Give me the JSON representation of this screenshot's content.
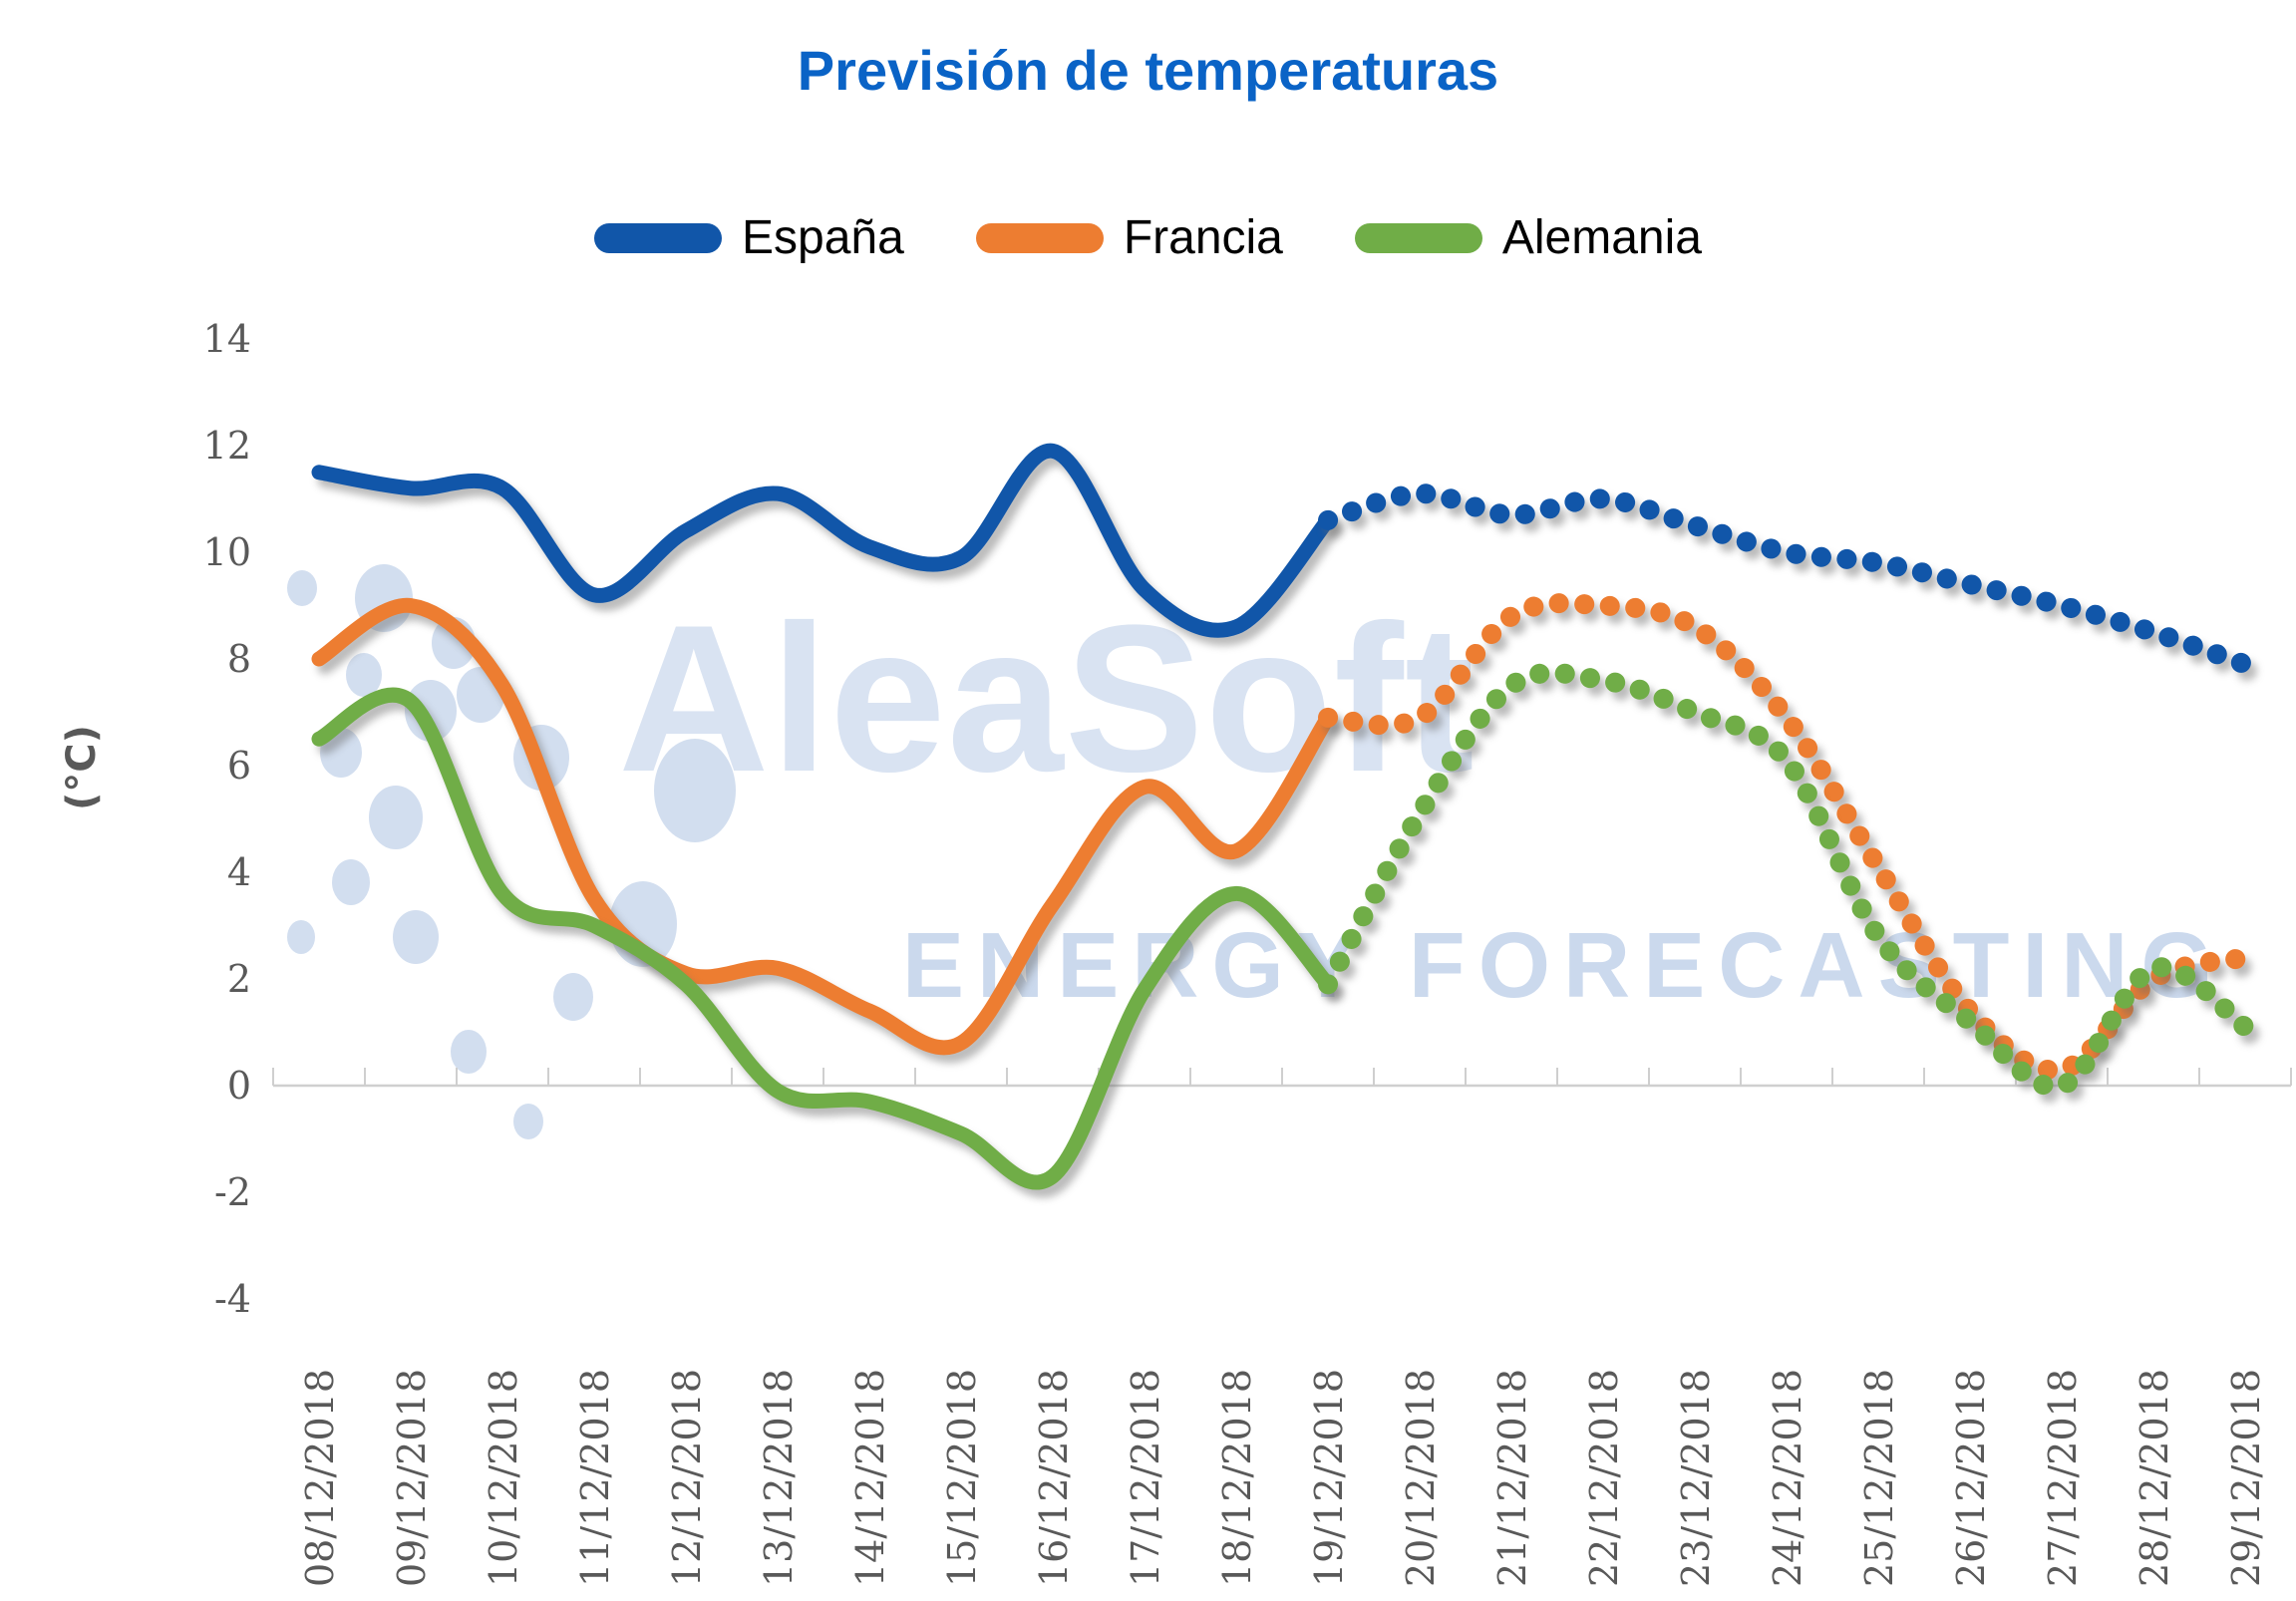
{
  "title": "Previsión de temperaturas",
  "watermark": {
    "brand": "AleaSoft",
    "subtitle": "ENERGY FORECASTING"
  },
  "legend": {
    "position": "top",
    "items": [
      {
        "label": "España",
        "color": "#1156a9"
      },
      {
        "label": "Francia",
        "color": "#ed7d31"
      },
      {
        "label": "Alemania",
        "color": "#70ad47"
      }
    ]
  },
  "y_axis": {
    "title": "(°C)",
    "min": -4,
    "max": 14,
    "step": 2,
    "ticks": [
      14,
      12,
      10,
      8,
      6,
      4,
      2,
      0,
      -2,
      -4
    ],
    "gridlines": false
  },
  "chart_data": {
    "type": "line",
    "title": "Previsión de temperaturas",
    "xlabel": "",
    "ylabel": "(°C)",
    "ylim": [
      -4,
      14
    ],
    "legend_position": "top",
    "grid": false,
    "categories": [
      "08/12/2018",
      "09/12/2018",
      "10/12/2018",
      "11/12/2018",
      "12/12/2018",
      "13/12/2018",
      "14/12/2018",
      "15/12/2018",
      "16/12/2018",
      "17/12/2018",
      "18/12/2018",
      "19/12/2018",
      "20/12/2018",
      "21/12/2018",
      "22/12/2018",
      "23/12/2018",
      "24/12/2018",
      "25/12/2018",
      "26/12/2018",
      "27/12/2018",
      "28/12/2018",
      "29/12/2018"
    ],
    "solid_range": [
      "08/12/2018",
      "19/12/2018"
    ],
    "forecast_range": [
      "20/12/2018",
      "29/12/2018"
    ],
    "series": [
      {
        "name": "España",
        "color": "#1156a9",
        "solid": [
          11.5,
          11.2,
          11.2,
          9.2,
          10.4,
          11.1,
          10.1,
          9.9,
          11.9,
          9.3,
          8.6,
          10.6
        ],
        "forecast": [
          11.1,
          10.7,
          11.0,
          10.5,
          10.0,
          9.8,
          9.4,
          9.0,
          8.5,
          7.9
        ]
      },
      {
        "name": "Francia",
        "color": "#ed7d31",
        "solid": [
          8.0,
          9.0,
          7.5,
          3.5,
          2.1,
          2.2,
          1.4,
          0.8,
          3.4,
          5.6,
          4.4,
          6.9
        ],
        "forecast": [
          6.9,
          8.8,
          9.0,
          8.6,
          6.9,
          4.1,
          1.4,
          0.3,
          2.0,
          2.4
        ]
      },
      {
        "name": "Alemania",
        "color": "#70ad47",
        "solid": [
          6.5,
          7.2,
          3.6,
          3.0,
          1.9,
          -0.1,
          -0.3,
          -0.9,
          -1.7,
          1.8,
          3.6,
          1.9
        ],
        "forecast": [
          5.1,
          7.5,
          7.6,
          7.0,
          6.1,
          2.8,
          1.2,
          0.0,
          2.2,
          1.1
        ]
      }
    ]
  },
  "watermark_dots": [
    [
      303,
      590,
      15,
      18
    ],
    [
      385,
      600,
      29,
      34
    ],
    [
      455,
      645,
      22,
      26
    ],
    [
      365,
      677,
      18,
      22
    ],
    [
      432,
      713,
      26,
      31
    ],
    [
      342,
      755,
      21,
      25
    ],
    [
      397,
      820,
      27,
      32
    ],
    [
      352,
      885,
      19,
      23
    ],
    [
      302,
      940,
      14,
      17
    ],
    [
      417,
      940,
      23,
      27
    ],
    [
      543,
      760,
      28,
      33
    ],
    [
      482,
      697,
      24,
      28
    ],
    [
      697,
      793,
      41,
      52
    ],
    [
      645,
      927,
      34,
      43
    ],
    [
      575,
      1000,
      20,
      24
    ],
    [
      470,
      1055,
      18,
      22
    ],
    [
      530,
      1125,
      15,
      18
    ]
  ]
}
